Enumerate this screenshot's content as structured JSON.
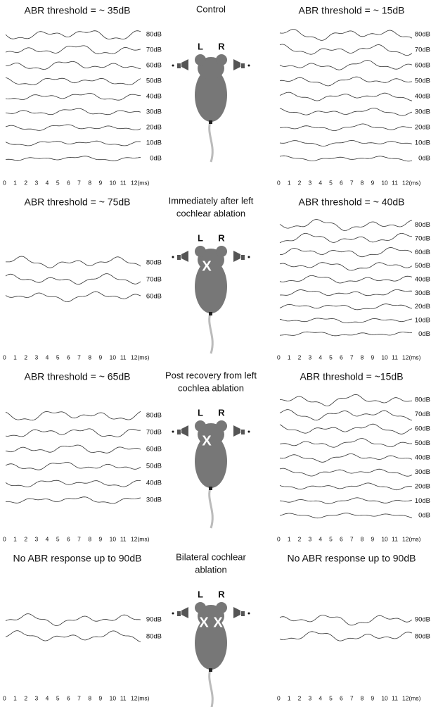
{
  "axis_ticks": [
    "0",
    "1",
    "2",
    "3",
    "4",
    "5",
    "6",
    "7",
    "8",
    "9",
    "10",
    "11",
    "12(ms)"
  ],
  "mouse": {
    "left": "L",
    "right": "R"
  },
  "rows": [
    {
      "condition": [
        "Control"
      ],
      "marks": [],
      "left": {
        "title": "ABR threshold = ~ 35dB",
        "levels": [
          "80dB",
          "70dB",
          "60dB",
          "50dB",
          "40dB",
          "30dB",
          "20dB",
          "10dB",
          "0dB"
        ]
      },
      "right": {
        "title": "ABR threshold = ~ 15dB",
        "levels": [
          "80dB",
          "70dB",
          "60dB",
          "50dB",
          "40dB",
          "30dB",
          "20dB",
          "10dB",
          "0dB"
        ]
      }
    },
    {
      "condition": [
        "Immediately after left",
        "cochlear ablation"
      ],
      "marks": [
        "X"
      ],
      "left": {
        "title": "ABR threshold = ~ 75dB",
        "levels": [
          "80dB",
          "70dB",
          "60dB"
        ]
      },
      "right": {
        "title": "ABR threshold = ~ 40dB",
        "levels": [
          "80dB",
          "70dB",
          "60dB",
          "50dB",
          "40dB",
          "30dB",
          "20dB",
          "10dB",
          "0dB"
        ]
      }
    },
    {
      "condition": [
        "Post recovery from left",
        "cochlea ablation"
      ],
      "marks": [
        "X"
      ],
      "left": {
        "title": "ABR threshold = ~ 65dB",
        "levels": [
          "80dB",
          "70dB",
          "60dB",
          "50dB",
          "40dB",
          "30dB"
        ]
      },
      "right": {
        "title": "ABR threshold = ~15dB",
        "levels": [
          "80dB",
          "70dB",
          "60dB",
          "50dB",
          "40dB",
          "30dB",
          "20dB",
          "10dB",
          "0dB"
        ]
      }
    },
    {
      "condition": [
        "Bilateral cochlear",
        "ablation"
      ],
      "marks": [
        "X",
        "X"
      ],
      "left": {
        "title": "No ABR response up to 90dB",
        "levels": [
          "90dB",
          "80dB"
        ]
      },
      "right": {
        "title": "No ABR response up to 90dB",
        "levels": [
          "90dB",
          "80dB"
        ]
      }
    }
  ]
}
